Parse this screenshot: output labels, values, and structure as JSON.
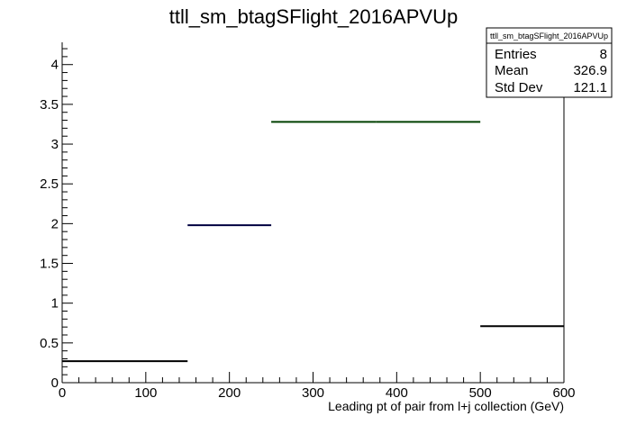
{
  "chart_data": {
    "type": "histogram",
    "title": "ttll_sm_btagSFlight_2016APVUp",
    "xlabel": "Leading pt of pair from l+j collection (GeV)",
    "ylabel": "",
    "xlim": [
      0,
      600
    ],
    "ylim": [
      0,
      4.28
    ],
    "grid": false,
    "x_ticks": [
      "0",
      "100",
      "200",
      "300",
      "400",
      "500",
      "600"
    ],
    "y_ticks": [
      "0",
      "0.5",
      "1",
      "1.5",
      "2",
      "2.5",
      "3",
      "3.5",
      "4"
    ],
    "bins": [
      {
        "x_low": 0,
        "x_high": 150,
        "value": 0.27,
        "color": "#000000"
      },
      {
        "x_low": 150,
        "x_high": 250,
        "value": 1.98,
        "color": "#000040"
      },
      {
        "x_low": 250,
        "x_high": 375,
        "value": 3.28,
        "color": "#004000"
      },
      {
        "x_low": 375,
        "x_high": 500,
        "value": 3.28,
        "color": "#004000"
      },
      {
        "x_low": 500,
        "x_high": 600,
        "value": 0.71,
        "color": "#000000"
      }
    ],
    "stats_box": {
      "title": "ttll_sm_btagSFlight_2016APVUp",
      "rows": [
        {
          "label": "Entries",
          "value": "8"
        },
        {
          "label": "Mean",
          "value": "326.9"
        },
        {
          "label": "Std Dev",
          "value": "121.1"
        }
      ]
    }
  }
}
